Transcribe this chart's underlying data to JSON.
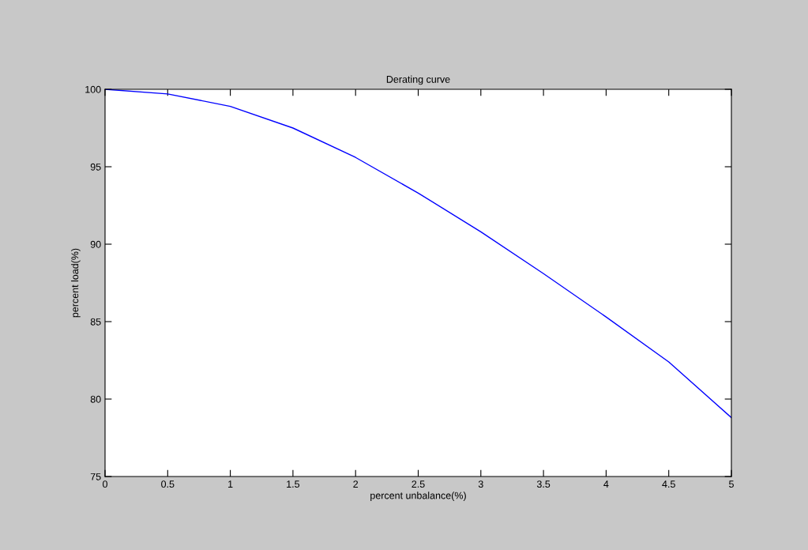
{
  "chart_data": {
    "type": "line",
    "title": "Derating curve",
    "xlabel": "percent unbalance(%)",
    "ylabel": "percent load(%)",
    "x": [
      0,
      0.5,
      1,
      1.5,
      2,
      2.5,
      3,
      3.5,
      4,
      4.5,
      5
    ],
    "series": [
      {
        "color": "#0000ff",
        "values": [
          100,
          99.7,
          98.9,
          97.5,
          95.6,
          93.3,
          90.8,
          88.1,
          85.3,
          82.4,
          78.8
        ]
      }
    ],
    "xlim": [
      0,
      5
    ],
    "xticks": [
      0,
      0.5,
      1,
      1.5,
      2,
      2.5,
      3,
      3.5,
      4,
      4.5,
      5
    ],
    "ylim": [
      75,
      100
    ],
    "yticks": [
      75,
      80,
      85,
      90,
      95,
      100
    ],
    "grid": false,
    "marker": "none",
    "line_style": "solid"
  }
}
